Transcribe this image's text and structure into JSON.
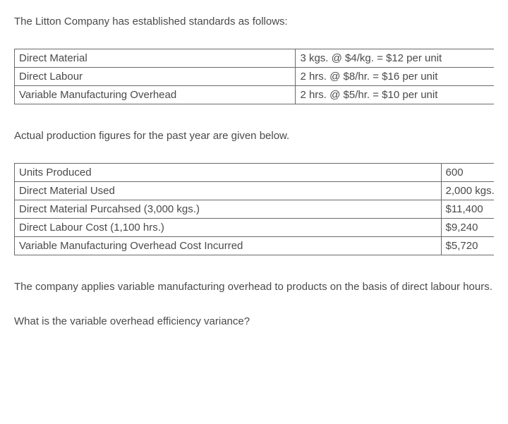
{
  "intro": "The Litton Company has established standards as follows:",
  "standards_table": {
    "rows": [
      [
        "Direct Material",
        "3 kgs. @ $4/kg. = $12 per unit"
      ],
      [
        "Direct Labour",
        "2 hrs. @ $8/hr. = $16 per unit"
      ],
      [
        "Variable Manufacturing Overhead",
        "2 hrs. @ $5/hr. = $10 per unit"
      ]
    ]
  },
  "actuals_intro": "Actual production figures for the past year are given below.",
  "actuals_table": {
    "rows": [
      [
        "Units Produced",
        "600"
      ],
      [
        "Direct Material Used",
        "2,000 kgs."
      ],
      [
        "Direct Material Purcahsed (3,000 kgs.)",
        "$11,400"
      ],
      [
        "Direct Labour Cost (1,100 hrs.)",
        "$9,240"
      ],
      [
        "Variable Manufacturing Overhead Cost Incurred",
        "$5,720"
      ]
    ]
  },
  "note": "The company applies variable manufacturing overhead to products on the basis of direct labour hours.",
  "question": "What is the variable overhead efficiency variance?"
}
